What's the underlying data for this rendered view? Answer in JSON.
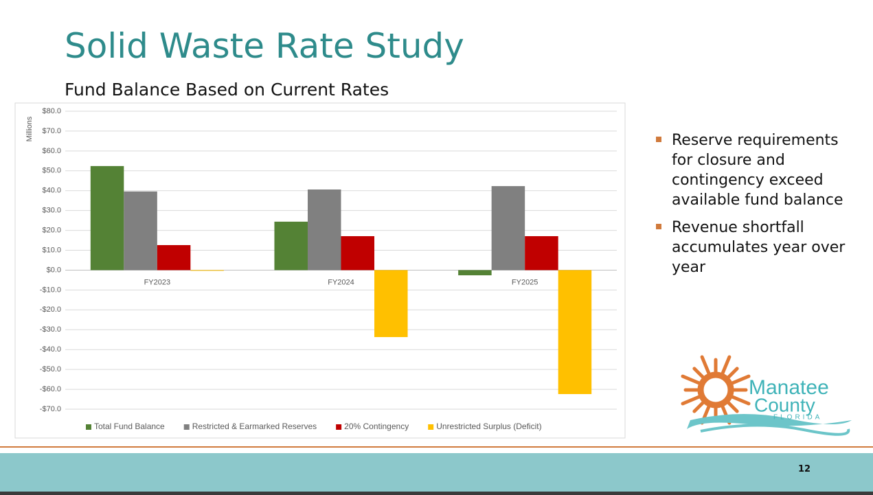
{
  "title": "Solid Waste Rate Study",
  "subtitle": "Fund Balance Based on Current Rates",
  "bullets": [
    "Reserve requirements for closure and contingency exceed available fund balance",
    "Revenue shortfall accumulates year over year"
  ],
  "logo": {
    "name": "Manatee",
    "name2": "County",
    "state": "FLORIDA"
  },
  "page_number": "12",
  "chart_data": {
    "type": "bar",
    "ylabel": "Millions",
    "categories": [
      "FY2023",
      "FY2024",
      "FY2025"
    ],
    "series": [
      {
        "name": "Total Fund Balance",
        "color": "#548235",
        "values": [
          52.4,
          24.4,
          -2.6
        ]
      },
      {
        "name": "Restricted & Earmarked Reserves",
        "color": "#808080",
        "values": [
          39.6,
          40.6,
          42.3
        ]
      },
      {
        "name": "20% Contingency",
        "color": "#c00000",
        "values": [
          12.6,
          17.1,
          17.1
        ]
      },
      {
        "name": "Unrestricted Surplus (Deficit)",
        "color": "#ffc000",
        "values": [
          -0.3,
          -33.7,
          -62.4
        ]
      }
    ],
    "ylim": [
      -70,
      80
    ],
    "yticks": [
      {
        "value": 80,
        "label": "$80.0"
      },
      {
        "value": 70,
        "label": "$70.0"
      },
      {
        "value": 60,
        "label": "$60.0"
      },
      {
        "value": 50,
        "label": "$50.0"
      },
      {
        "value": 40,
        "label": "$40.0"
      },
      {
        "value": 30,
        "label": "$30.0"
      },
      {
        "value": 20,
        "label": "$20.0"
      },
      {
        "value": 10,
        "label": "$10.0"
      },
      {
        "value": 0,
        "label": "$0.0"
      },
      {
        "value": -10,
        "label": "-$10.0"
      },
      {
        "value": -20,
        "label": "-$20.0"
      },
      {
        "value": -30,
        "label": "-$30.0"
      },
      {
        "value": -40,
        "label": "-$40.0"
      },
      {
        "value": -50,
        "label": "-$50.0"
      },
      {
        "value": -60,
        "label": "-$60.0"
      },
      {
        "value": -70,
        "label": "-$70.0"
      }
    ],
    "grid": true,
    "legend": "bottom"
  }
}
